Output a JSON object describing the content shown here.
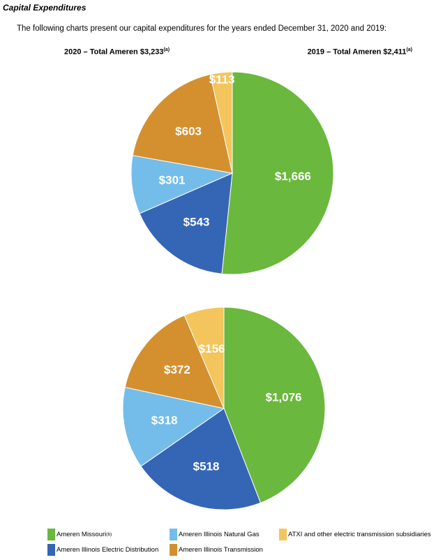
{
  "section_title": "Capital Expenditures",
  "intro": "The following charts present our capital expenditures for the years ended December 31, 2020 and 2019:",
  "headings": {
    "left": "2020 – Total Ameren $3,233",
    "left_note": "(a)",
    "right": "2019 – Total Ameren $2,411",
    "right_note": "(a)"
  },
  "colors": {
    "ameren_missouri": "#6ab83d",
    "ameren_illinois_electric_distribution": "#3565b5",
    "ameren_illinois_natural_gas": "#74bdea",
    "ameren_illinois_transmission": "#d4902e",
    "atxi": "#f3c55c"
  },
  "legend": [
    {
      "key": "ameren_missouri",
      "label": "Ameren Missouri",
      "note": "(b)"
    },
    {
      "key": "ameren_illinois_natural_gas",
      "label": "Ameren Illinois Natural Gas",
      "note": ""
    },
    {
      "key": "atxi",
      "label": "ATXI and other electric transmission subsidiaries",
      "note": ""
    },
    {
      "key": "ameren_illinois_electric_distribution",
      "label": "Ameren Illinois Electric Distribution",
      "note": ""
    },
    {
      "key": "ameren_illinois_transmission",
      "label": "Ameren Illinois Transmission",
      "note": ""
    }
  ],
  "chart_data": [
    {
      "type": "pie",
      "title": "2020 – Total Ameren $3,233",
      "total": 3233,
      "slices": [
        {
          "key": "ameren_missouri",
          "value": 1666,
          "label": "$1,666"
        },
        {
          "key": "ameren_illinois_electric_distribution",
          "value": 543,
          "label": "$543"
        },
        {
          "key": "ameren_illinois_natural_gas",
          "value": 301,
          "label": "$301"
        },
        {
          "key": "ameren_illinois_transmission",
          "value": 603,
          "label": "$603"
        },
        {
          "key": "atxi",
          "value": 113,
          "label": "$113"
        }
      ]
    },
    {
      "type": "pie",
      "title": "2019 – Total Ameren $2,411",
      "total": 2411,
      "slices": [
        {
          "key": "ameren_missouri",
          "value": 1076,
          "label": "$1,076"
        },
        {
          "key": "ameren_illinois_electric_distribution",
          "value": 518,
          "label": "$518"
        },
        {
          "key": "ameren_illinois_natural_gas",
          "value": 318,
          "label": "$318"
        },
        {
          "key": "ameren_illinois_transmission",
          "value": 372,
          "label": "$372"
        },
        {
          "key": "atxi",
          "value": 156,
          "label": "$156"
        }
      ]
    }
  ]
}
